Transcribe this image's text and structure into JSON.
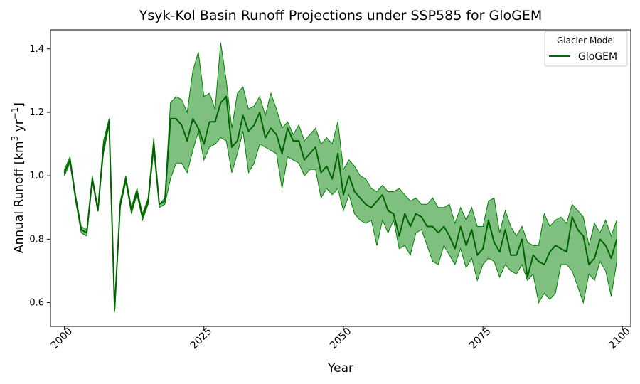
{
  "chart_data": {
    "type": "line",
    "title": "Ysyk-Kol Basin Runoff Projections under SSP585 for GloGEM",
    "xlabel": "Year",
    "ylabel_main": "Annual Runoff [km",
    "ylabel_sup1": "3",
    "ylabel_mid": " yr",
    "ylabel_sup2": "−1",
    "ylabel_end": "]",
    "xlim": [
      1997.5,
      2101.5
    ],
    "ylim": [
      0.525,
      1.46
    ],
    "xticks": [
      2000,
      2025,
      2050,
      2075,
      2100
    ],
    "xtick_labels": [
      "2000",
      "2025",
      "2050",
      "2075",
      "2100"
    ],
    "yticks": [
      0.6,
      0.8,
      1.0,
      1.2,
      1.4
    ],
    "ytick_labels": [
      "0.6",
      "0.8",
      "1.0",
      "1.2",
      "1.4"
    ],
    "grid": false,
    "legend": {
      "title": "Glacier Model",
      "position": "top-right",
      "entries": [
        "GloGEM"
      ]
    },
    "colors": {
      "line": "#006400",
      "band_fill": "#008000",
      "band_fill_opacity": 0.5
    },
    "series": [
      {
        "name": "GloGEM",
        "x": [
          2000,
          2001,
          2002,
          2003,
          2004,
          2005,
          2006,
          2007,
          2008,
          2009,
          2010,
          2011,
          2012,
          2013,
          2014,
          2015,
          2016,
          2017,
          2018,
          2019,
          2020,
          2021,
          2022,
          2023,
          2024,
          2025,
          2026,
          2027,
          2028,
          2029,
          2030,
          2031,
          2032,
          2033,
          2034,
          2035,
          2036,
          2037,
          2038,
          2039,
          2040,
          2041,
          2042,
          2043,
          2044,
          2045,
          2046,
          2047,
          2048,
          2049,
          2050,
          2051,
          2052,
          2053,
          2054,
          2055,
          2056,
          2057,
          2058,
          2059,
          2060,
          2061,
          2062,
          2063,
          2064,
          2065,
          2066,
          2067,
          2068,
          2069,
          2070,
          2071,
          2072,
          2073,
          2074,
          2075,
          2076,
          2077,
          2078,
          2079,
          2080,
          2081,
          2082,
          2083,
          2084,
          2085,
          2086,
          2087,
          2088,
          2089,
          2090,
          2091,
          2092,
          2093,
          2094,
          2095,
          2096,
          2097,
          2098,
          2099
        ],
        "mean": [
          1.01,
          1.05,
          0.93,
          0.83,
          0.82,
          0.99,
          0.89,
          1.09,
          1.17,
          0.58,
          0.91,
          0.99,
          0.89,
          0.95,
          0.87,
          0.92,
          1.1,
          0.91,
          0.92,
          1.18,
          1.18,
          1.16,
          1.11,
          1.18,
          1.15,
          1.1,
          1.17,
          1.17,
          1.23,
          1.25,
          1.09,
          1.11,
          1.19,
          1.14,
          1.16,
          1.2,
          1.12,
          1.15,
          1.13,
          1.07,
          1.15,
          1.11,
          1.11,
          1.05,
          1.07,
          1.09,
          1.01,
          1.03,
          0.99,
          1.07,
          0.94,
          1.0,
          0.95,
          0.93,
          0.91,
          0.9,
          0.92,
          0.94,
          0.89,
          0.88,
          0.81,
          0.88,
          0.84,
          0.88,
          0.87,
          0.84,
          0.84,
          0.82,
          0.84,
          0.81,
          0.77,
          0.84,
          0.78,
          0.83,
          0.75,
          0.77,
          0.86,
          0.79,
          0.76,
          0.83,
          0.75,
          0.75,
          0.8,
          0.68,
          0.75,
          0.73,
          0.72,
          0.76,
          0.78,
          0.77,
          0.76,
          0.87,
          0.83,
          0.81,
          0.72,
          0.74,
          0.8,
          0.78,
          0.74,
          0.8
        ],
        "upper": [
          1.02,
          1.06,
          0.94,
          0.84,
          0.83,
          1.0,
          0.9,
          1.11,
          1.18,
          0.59,
          0.92,
          1.0,
          0.9,
          0.96,
          0.88,
          0.93,
          1.12,
          0.91,
          0.93,
          1.23,
          1.25,
          1.24,
          1.2,
          1.33,
          1.39,
          1.25,
          1.26,
          1.21,
          1.42,
          1.3,
          1.15,
          1.26,
          1.28,
          1.21,
          1.22,
          1.25,
          1.19,
          1.26,
          1.21,
          1.15,
          1.17,
          1.13,
          1.16,
          1.11,
          1.13,
          1.15,
          1.1,
          1.12,
          1.1,
          1.17,
          1.02,
          1.05,
          1.03,
          1.0,
          0.99,
          0.96,
          0.95,
          0.97,
          0.95,
          0.95,
          0.96,
          0.94,
          0.92,
          0.93,
          0.91,
          0.91,
          0.93,
          0.9,
          0.9,
          0.91,
          0.85,
          0.9,
          0.86,
          0.9,
          0.84,
          0.84,
          0.92,
          0.93,
          0.82,
          0.89,
          0.84,
          0.81,
          0.84,
          0.79,
          0.78,
          0.78,
          0.88,
          0.84,
          0.86,
          0.87,
          0.85,
          0.91,
          0.89,
          0.87,
          0.78,
          0.85,
          0.82,
          0.86,
          0.81,
          0.86
        ],
        "lower": [
          1.0,
          1.04,
          0.92,
          0.82,
          0.81,
          0.98,
          0.89,
          1.07,
          1.16,
          0.57,
          0.9,
          0.98,
          0.88,
          0.94,
          0.86,
          0.91,
          1.08,
          0.9,
          0.91,
          0.99,
          1.04,
          1.04,
          1.01,
          1.08,
          1.14,
          1.05,
          1.09,
          1.1,
          1.12,
          1.11,
          1.01,
          1.07,
          1.14,
          1.01,
          1.04,
          1.1,
          1.09,
          1.08,
          1.07,
          0.96,
          1.06,
          1.05,
          1.04,
          1.0,
          1.02,
          1.02,
          0.93,
          0.96,
          0.94,
          0.96,
          0.89,
          0.94,
          0.88,
          0.86,
          0.85,
          0.86,
          0.78,
          0.86,
          0.82,
          0.86,
          0.77,
          0.78,
          0.75,
          0.82,
          0.83,
          0.78,
          0.73,
          0.72,
          0.78,
          0.75,
          0.72,
          0.77,
          0.71,
          0.74,
          0.67,
          0.72,
          0.74,
          0.73,
          0.68,
          0.72,
          0.7,
          0.69,
          0.72,
          0.67,
          0.69,
          0.6,
          0.63,
          0.61,
          0.63,
          0.72,
          0.72,
          0.7,
          0.65,
          0.6,
          0.69,
          0.67,
          0.73,
          0.7,
          0.62,
          0.73
        ]
      }
    ]
  }
}
